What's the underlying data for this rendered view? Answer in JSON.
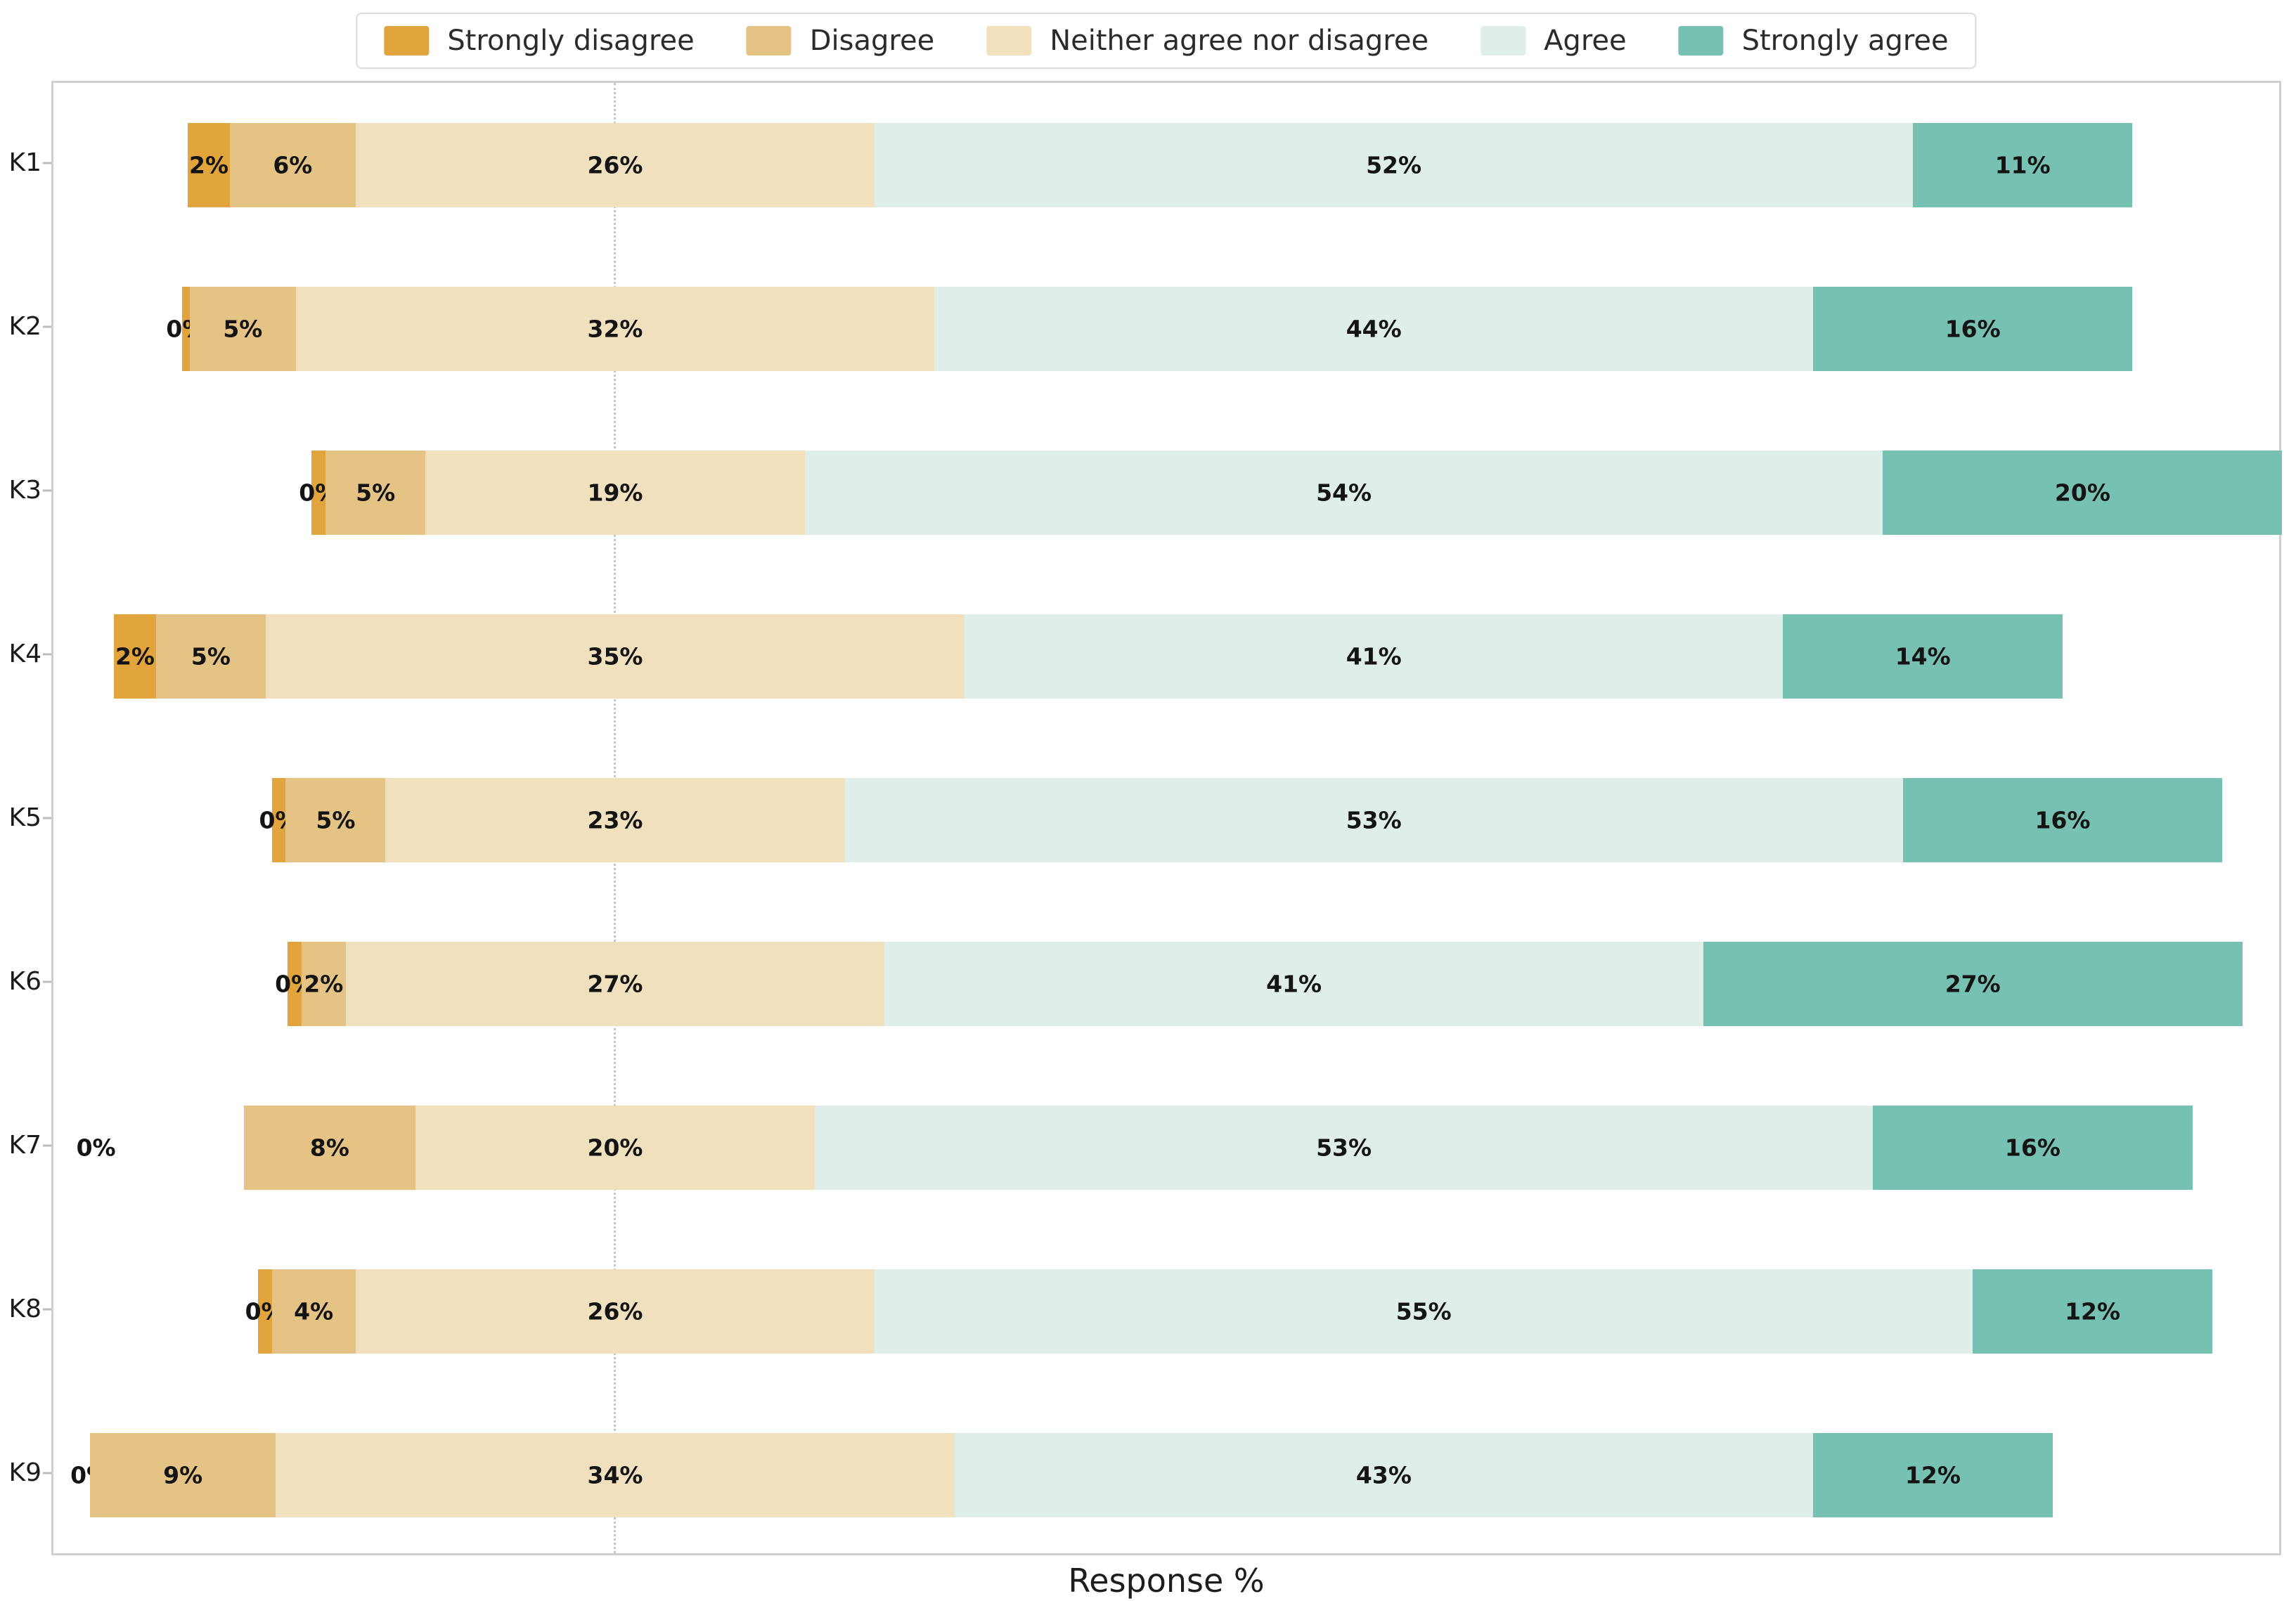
{
  "axes": {
    "xlabel": "Response %",
    "ylabels": [
      "K1",
      "K2",
      "K3",
      "K4",
      "K5",
      "K6",
      "K7",
      "K8",
      "K9"
    ]
  },
  "legend": {
    "items": [
      {
        "label": "Strongly disagree",
        "color": "#E2A43C"
      },
      {
        "label": "Disagree",
        "color": "#E4C385"
      },
      {
        "label": "Neither agree nor disagree",
        "color": "#F1E0BE"
      },
      {
        "label": "Agree",
        "color": "#E0EEE9"
      },
      {
        "label": "Strongly agree",
        "color": "#77C1B3"
      }
    ]
  },
  "chart_data": {
    "type": "bar",
    "subtype": "horizontal-diverging-stacked-likert",
    "title": "",
    "xlabel": "Response %",
    "ylabel": "",
    "unit": "percent",
    "grid": false,
    "legend_position": "top-center",
    "neutral_split_at_center": true,
    "center_reference_line": "dotted",
    "categories": [
      "K1",
      "K2",
      "K3",
      "K4",
      "K5",
      "K6",
      "K7",
      "K8",
      "K9"
    ],
    "series": [
      {
        "name": "Strongly disagree",
        "color": "#E2A43C",
        "values": [
          2,
          0,
          0,
          2,
          0,
          0,
          0,
          0,
          0
        ],
        "render_widths": [
          2.1,
          0.4,
          0.7,
          2.1,
          0.7,
          0.7,
          0,
          0.7,
          0
        ]
      },
      {
        "name": "Disagree",
        "color": "#E4C385",
        "values": [
          6,
          5,
          5,
          5,
          5,
          2,
          8,
          4,
          9
        ],
        "render_widths": [
          6.3,
          5.3,
          5.0,
          5.5,
          5.0,
          2.2,
          8.6,
          4.2,
          9.3
        ]
      },
      {
        "name": "Neither agree nor disagree",
        "color": "#F1E0BE",
        "values": [
          26,
          32,
          19,
          35,
          23,
          27,
          20,
          26,
          34
        ],
        "render_widths": [
          26,
          32,
          19,
          35,
          23,
          27,
          20,
          26,
          34
        ]
      },
      {
        "name": "Agree",
        "color": "#E0EEE9",
        "values": [
          52,
          44,
          54,
          41,
          53,
          41,
          53,
          55,
          43
        ],
        "render_widths": [
          52,
          44,
          54,
          41,
          53,
          41,
          53,
          55,
          43
        ]
      },
      {
        "name": "Strongly agree",
        "color": "#77C1B3",
        "values": [
          11,
          16,
          20,
          14,
          16,
          27,
          16,
          12,
          12
        ],
        "render_widths": [
          11,
          16,
          20,
          14,
          16,
          27,
          16,
          12,
          12
        ]
      }
    ],
    "value_label_suffix": "%",
    "label_overrides": [
      {
        "category": "K7",
        "series": "Strongly disagree",
        "x_pct_from_center": -26
      }
    ]
  }
}
